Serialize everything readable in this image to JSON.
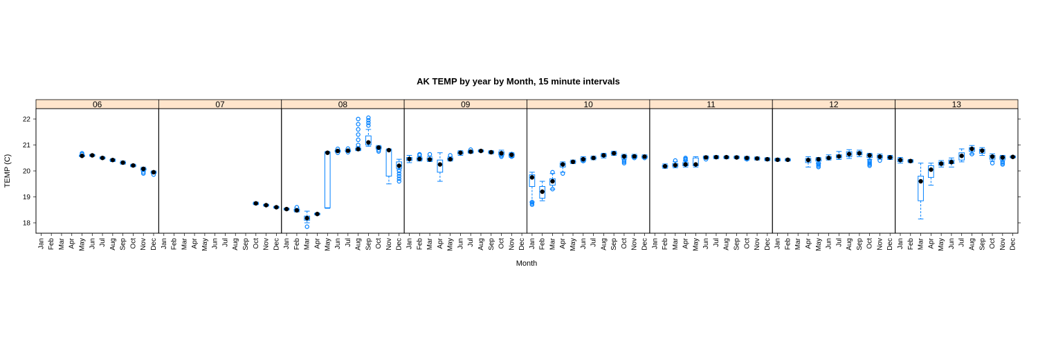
{
  "chart_data": {
    "type": "box",
    "title": "AK TEMP by year by Month, 15 minute intervals",
    "xlabel": "Month",
    "ylabel": "TEMP (C)",
    "ylim": [
      17.6,
      22.4
    ],
    "yticks": [
      "18",
      "19",
      "20",
      "21",
      "22"
    ],
    "months": [
      "Jan",
      "Feb",
      "Mar",
      "Apr",
      "May",
      "Jun",
      "Jul",
      "Aug",
      "Sep",
      "Oct",
      "Nov",
      "Dec"
    ],
    "strip_color": "#ffe5cc",
    "box_color": "#0080ff",
    "panels": [
      {
        "name": "06",
        "boxes": [
          {
            "m": 5,
            "min": 20.55,
            "q1": 20.56,
            "med": 20.58,
            "q3": 20.6,
            "max": 20.62,
            "out": [
              20.68,
              20.64
            ]
          },
          {
            "m": 6,
            "min": 20.56,
            "q1": 20.58,
            "med": 20.6,
            "q3": 20.62,
            "max": 20.64,
            "out": []
          },
          {
            "m": 7,
            "min": 20.46,
            "q1": 20.49,
            "med": 20.5,
            "q3": 20.52,
            "max": 20.55,
            "out": []
          },
          {
            "m": 8,
            "min": 20.36,
            "q1": 20.39,
            "med": 20.42,
            "q3": 20.44,
            "max": 20.47,
            "out": []
          },
          {
            "m": 9,
            "min": 20.26,
            "q1": 20.29,
            "med": 20.32,
            "q3": 20.34,
            "max": 20.38,
            "out": []
          },
          {
            "m": 10,
            "min": 20.16,
            "q1": 20.18,
            "med": 20.21,
            "q3": 20.23,
            "max": 20.26,
            "out": []
          },
          {
            "m": 11,
            "min": 20.0,
            "q1": 20.04,
            "med": 20.08,
            "q3": 20.1,
            "max": 20.14,
            "out": [
              19.9,
              19.95
            ]
          },
          {
            "m": 12,
            "min": 19.9,
            "q1": 19.92,
            "med": 19.95,
            "q3": 19.97,
            "max": 20.0,
            "out": [
              19.86
            ]
          }
        ]
      },
      {
        "name": "07",
        "boxes": [
          {
            "m": 10,
            "min": 18.7,
            "q1": 18.72,
            "med": 18.75,
            "q3": 18.77,
            "max": 18.8,
            "out": []
          },
          {
            "m": 11,
            "min": 18.64,
            "q1": 18.66,
            "med": 18.68,
            "q3": 18.7,
            "max": 18.72,
            "out": []
          },
          {
            "m": 12,
            "min": 18.56,
            "q1": 18.58,
            "med": 18.6,
            "q3": 18.62,
            "max": 18.64,
            "out": []
          }
        ]
      },
      {
        "name": "08",
        "boxes": [
          {
            "m": 1,
            "min": 18.49,
            "q1": 18.51,
            "med": 18.53,
            "q3": 18.55,
            "max": 18.57,
            "out": []
          },
          {
            "m": 2,
            "min": 18.42,
            "q1": 18.45,
            "med": 18.48,
            "q3": 18.52,
            "max": 18.56,
            "out": [
              18.6
            ]
          },
          {
            "m": 3,
            "min": 18.0,
            "q1": 18.1,
            "med": 18.18,
            "q3": 18.26,
            "max": 18.45,
            "out": [
              17.85
            ]
          },
          {
            "m": 4,
            "min": 18.3,
            "q1": 18.32,
            "med": 18.34,
            "q3": 18.36,
            "max": 18.38,
            "out": []
          },
          {
            "m": 5,
            "min": 18.56,
            "q1": 18.58,
            "med": 20.7,
            "q3": 20.72,
            "max": 20.75,
            "out": []
          },
          {
            "m": 6,
            "min": 20.72,
            "q1": 20.74,
            "med": 20.77,
            "q3": 20.79,
            "max": 20.82,
            "out": [
              20.7,
              20.85
            ]
          },
          {
            "m": 7,
            "min": 20.74,
            "q1": 20.76,
            "med": 20.78,
            "q3": 20.8,
            "max": 20.84,
            "out": [
              20.72,
              20.86
            ]
          },
          {
            "m": 8,
            "min": 20.78,
            "q1": 20.8,
            "med": 20.84,
            "q3": 20.87,
            "max": 20.92,
            "out": [
              21.0,
              21.2,
              21.4,
              21.6,
              21.8,
              22.0
            ]
          },
          {
            "m": 9,
            "min": 20.95,
            "q1": 21.0,
            "med": 21.1,
            "q3": 21.35,
            "max": 21.6,
            "out": [
              21.75,
              21.85,
              21.95,
              22.05
            ]
          },
          {
            "m": 10,
            "min": 20.82,
            "q1": 20.86,
            "med": 20.9,
            "q3": 20.94,
            "max": 20.98,
            "out": [
              20.75,
              20.8
            ]
          },
          {
            "m": 11,
            "min": 19.5,
            "q1": 19.8,
            "med": 20.8,
            "q3": 20.82,
            "max": 20.85,
            "out": []
          },
          {
            "m": 12,
            "min": 20.05,
            "q1": 20.1,
            "med": 20.2,
            "q3": 20.35,
            "max": 20.45,
            "out": [
              19.6,
              19.7,
              19.8,
              19.9,
              20.0
            ]
          }
        ]
      },
      {
        "name": "09",
        "boxes": [
          {
            "m": 1,
            "min": 20.32,
            "q1": 20.4,
            "med": 20.46,
            "q3": 20.52,
            "max": 20.6,
            "out": []
          },
          {
            "m": 2,
            "min": 20.38,
            "q1": 20.42,
            "med": 20.46,
            "q3": 20.5,
            "max": 20.54,
            "out": [
              20.6,
              20.64
            ]
          },
          {
            "m": 3,
            "min": 20.36,
            "q1": 20.4,
            "med": 20.44,
            "q3": 20.5,
            "max": 20.56,
            "out": [
              20.64
            ]
          },
          {
            "m": 4,
            "min": 19.6,
            "q1": 19.95,
            "med": 20.25,
            "q3": 20.42,
            "max": 20.7,
            "out": []
          },
          {
            "m": 5,
            "min": 20.38,
            "q1": 20.42,
            "med": 20.45,
            "q3": 20.5,
            "max": 20.54,
            "out": [
              20.6
            ]
          },
          {
            "m": 6,
            "min": 20.6,
            "q1": 20.65,
            "med": 20.7,
            "q3": 20.74,
            "max": 20.78,
            "out": []
          },
          {
            "m": 7,
            "min": 20.68,
            "q1": 20.71,
            "med": 20.74,
            "q3": 20.77,
            "max": 20.8,
            "out": [
              20.82
            ]
          },
          {
            "m": 8,
            "min": 20.73,
            "q1": 20.75,
            "med": 20.77,
            "q3": 20.79,
            "max": 20.82,
            "out": []
          },
          {
            "m": 9,
            "min": 20.66,
            "q1": 20.69,
            "med": 20.72,
            "q3": 20.75,
            "max": 20.78,
            "out": []
          },
          {
            "m": 10,
            "min": 20.58,
            "q1": 20.62,
            "med": 20.68,
            "q3": 20.74,
            "max": 20.8,
            "out": [
              20.55,
              20.6
            ]
          },
          {
            "m": 11,
            "min": 20.52,
            "q1": 20.56,
            "med": 20.62,
            "q3": 20.66,
            "max": 20.7,
            "out": [
              20.55,
              20.65
            ]
          }
        ]
      },
      {
        "name": "10",
        "boxes": [
          {
            "m": 1,
            "min": 18.8,
            "q1": 19.4,
            "med": 19.75,
            "q3": 19.85,
            "max": 19.95,
            "out": [
              18.7,
              18.75,
              18.8
            ]
          },
          {
            "m": 2,
            "min": 18.85,
            "q1": 18.95,
            "med": 19.2,
            "q3": 19.4,
            "max": 19.6,
            "out": []
          },
          {
            "m": 3,
            "min": 19.3,
            "q1": 19.45,
            "med": 19.6,
            "q3": 19.7,
            "max": 19.9,
            "out": [
              19.3,
              19.95
            ]
          },
          {
            "m": 4,
            "min": 19.95,
            "q1": 20.15,
            "med": 20.25,
            "q3": 20.3,
            "max": 20.35,
            "out": [
              19.9
            ]
          },
          {
            "m": 5,
            "min": 20.28,
            "q1": 20.32,
            "med": 20.35,
            "q3": 20.38,
            "max": 20.42,
            "out": []
          },
          {
            "m": 6,
            "min": 20.35,
            "q1": 20.4,
            "med": 20.45,
            "q3": 20.5,
            "max": 20.55,
            "out": [
              20.38
            ]
          },
          {
            "m": 7,
            "min": 20.43,
            "q1": 20.47,
            "med": 20.5,
            "q3": 20.53,
            "max": 20.57,
            "out": []
          },
          {
            "m": 8,
            "min": 20.5,
            "q1": 20.55,
            "med": 20.6,
            "q3": 20.64,
            "max": 20.68,
            "out": []
          },
          {
            "m": 9,
            "min": 20.6,
            "q1": 20.64,
            "med": 20.68,
            "q3": 20.72,
            "max": 20.76,
            "out": []
          },
          {
            "m": 10,
            "min": 20.45,
            "q1": 20.5,
            "med": 20.56,
            "q3": 20.6,
            "max": 20.64,
            "out": [
              20.3,
              20.35,
              20.4
            ]
          },
          {
            "m": 11,
            "min": 20.48,
            "q1": 20.52,
            "med": 20.56,
            "q3": 20.6,
            "max": 20.64,
            "out": [
              20.5
            ]
          },
          {
            "m": 12,
            "min": 20.48,
            "q1": 20.51,
            "med": 20.55,
            "q3": 20.58,
            "max": 20.62,
            "out": [
              20.5
            ]
          }
        ]
      },
      {
        "name": "11",
        "boxes": [
          {
            "m": 2,
            "min": 20.1,
            "q1": 20.14,
            "med": 20.18,
            "q3": 20.22,
            "max": 20.27,
            "out": []
          },
          {
            "m": 3,
            "min": 20.12,
            "q1": 20.17,
            "med": 20.22,
            "q3": 20.28,
            "max": 20.35,
            "out": [
              20.4
            ]
          },
          {
            "m": 4,
            "min": 20.15,
            "q1": 20.2,
            "med": 20.25,
            "q3": 20.32,
            "max": 20.38,
            "out": [
              20.42,
              20.46,
              20.5
            ]
          },
          {
            "m": 5,
            "min": 20.15,
            "q1": 20.2,
            "med": 20.25,
            "q3": 20.5,
            "max": 20.55,
            "out": []
          },
          {
            "m": 6,
            "min": 20.46,
            "q1": 20.49,
            "med": 20.52,
            "q3": 20.55,
            "max": 20.58,
            "out": [
              20.45
            ]
          },
          {
            "m": 7,
            "min": 20.47,
            "q1": 20.5,
            "med": 20.53,
            "q3": 20.56,
            "max": 20.59,
            "out": []
          },
          {
            "m": 8,
            "min": 20.47,
            "q1": 20.5,
            "med": 20.53,
            "q3": 20.55,
            "max": 20.58,
            "out": []
          },
          {
            "m": 9,
            "min": 20.47,
            "q1": 20.5,
            "med": 20.52,
            "q3": 20.55,
            "max": 20.58,
            "out": []
          },
          {
            "m": 10,
            "min": 20.42,
            "q1": 20.46,
            "med": 20.5,
            "q3": 20.53,
            "max": 20.56,
            "out": [
              20.45
            ]
          },
          {
            "m": 11,
            "min": 20.42,
            "q1": 20.45,
            "med": 20.48,
            "q3": 20.51,
            "max": 20.54,
            "out": []
          },
          {
            "m": 12,
            "min": 20.39,
            "q1": 20.42,
            "med": 20.45,
            "q3": 20.48,
            "max": 20.51,
            "out": []
          }
        ]
      },
      {
        "name": "12",
        "boxes": [
          {
            "m": 1,
            "min": 20.38,
            "q1": 20.4,
            "med": 20.43,
            "q3": 20.46,
            "max": 20.49,
            "out": []
          },
          {
            "m": 2,
            "min": 20.38,
            "q1": 20.4,
            "med": 20.43,
            "q3": 20.45,
            "max": 20.48,
            "out": []
          },
          {
            "m": 4,
            "min": 20.15,
            "q1": 20.32,
            "med": 20.42,
            "q3": 20.48,
            "max": 20.55,
            "out": []
          },
          {
            "m": 5,
            "min": 20.3,
            "q1": 20.38,
            "med": 20.45,
            "q3": 20.48,
            "max": 20.52,
            "out": [
              20.15,
              20.2,
              20.25,
              20.3
            ]
          },
          {
            "m": 6,
            "min": 20.42,
            "q1": 20.46,
            "med": 20.5,
            "q3": 20.55,
            "max": 20.62,
            "out": []
          },
          {
            "m": 7,
            "min": 20.44,
            "q1": 20.5,
            "med": 20.56,
            "q3": 20.62,
            "max": 20.75,
            "out": []
          },
          {
            "m": 8,
            "min": 20.48,
            "q1": 20.55,
            "med": 20.65,
            "q3": 20.74,
            "max": 20.82,
            "out": []
          },
          {
            "m": 9,
            "min": 20.55,
            "q1": 20.62,
            "med": 20.68,
            "q3": 20.74,
            "max": 20.8,
            "out": []
          },
          {
            "m": 10,
            "min": 20.45,
            "q1": 20.52,
            "med": 20.6,
            "q3": 20.64,
            "max": 20.68,
            "out": [
              20.2,
              20.25,
              20.3,
              20.35,
              20.4
            ]
          },
          {
            "m": 11,
            "min": 20.45,
            "q1": 20.5,
            "med": 20.55,
            "q3": 20.6,
            "max": 20.65,
            "out": [
              20.4
            ]
          },
          {
            "m": 12,
            "min": 20.44,
            "q1": 20.48,
            "med": 20.52,
            "q3": 20.56,
            "max": 20.6,
            "out": []
          }
        ]
      },
      {
        "name": "13",
        "boxes": [
          {
            "m": 1,
            "min": 20.3,
            "q1": 20.36,
            "med": 20.42,
            "q3": 20.47,
            "max": 20.52,
            "out": []
          },
          {
            "m": 2,
            "min": 20.32,
            "q1": 20.35,
            "med": 20.38,
            "q3": 20.41,
            "max": 20.44,
            "out": []
          },
          {
            "m": 3,
            "min": 18.15,
            "q1": 18.85,
            "med": 19.6,
            "q3": 19.8,
            "max": 20.3,
            "out": []
          },
          {
            "m": 4,
            "min": 19.45,
            "q1": 19.75,
            "med": 20.05,
            "q3": 20.2,
            "max": 20.3,
            "out": []
          },
          {
            "m": 5,
            "min": 20.15,
            "q1": 20.22,
            "med": 20.28,
            "q3": 20.34,
            "max": 20.4,
            "out": []
          },
          {
            "m": 6,
            "min": 20.15,
            "q1": 20.28,
            "med": 20.34,
            "q3": 20.42,
            "max": 20.5,
            "out": []
          },
          {
            "m": 7,
            "min": 20.35,
            "q1": 20.42,
            "med": 20.58,
            "q3": 20.7,
            "max": 20.85,
            "out": []
          },
          {
            "m": 8,
            "min": 20.65,
            "q1": 20.75,
            "med": 20.85,
            "q3": 20.9,
            "max": 20.98,
            "out": [
              20.65
            ]
          },
          {
            "m": 9,
            "min": 20.6,
            "q1": 20.68,
            "med": 20.78,
            "q3": 20.84,
            "max": 20.9,
            "out": []
          },
          {
            "m": 10,
            "min": 20.38,
            "q1": 20.45,
            "med": 20.55,
            "q3": 20.6,
            "max": 20.66,
            "out": [
              20.3
            ]
          },
          {
            "m": 11,
            "min": 20.4,
            "q1": 20.45,
            "med": 20.52,
            "q3": 20.56,
            "max": 20.6,
            "out": [
              20.25,
              20.3,
              20.35
            ]
          },
          {
            "m": 12,
            "min": 20.5,
            "q1": 20.52,
            "med": 20.54,
            "q3": 20.56,
            "max": 20.58,
            "out": []
          }
        ]
      }
    ]
  }
}
